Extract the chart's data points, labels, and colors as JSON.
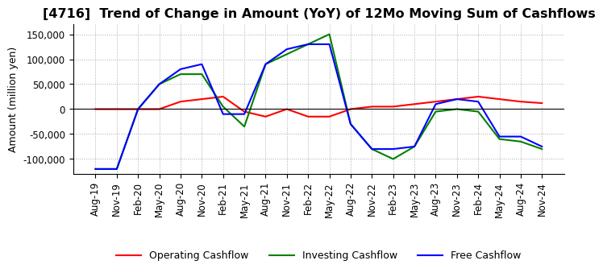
{
  "title": "[4716]  Trend of Change in Amount (YoY) of 12Mo Moving Sum of Cashflows",
  "ylabel": "Amount (million yen)",
  "ylim": [
    -130000,
    170000
  ],
  "yticks": [
    -100000,
    -50000,
    0,
    50000,
    100000,
    150000
  ],
  "background_color": "#ffffff",
  "grid_color": "#aaaaaa",
  "title_fontsize": 11.5,
  "label_fontsize": 9,
  "tick_fontsize": 8.5,
  "x_labels": [
    "Aug-19",
    "Nov-19",
    "Feb-20",
    "May-20",
    "Aug-20",
    "Nov-20",
    "Feb-21",
    "May-21",
    "Aug-21",
    "Nov-21",
    "Feb-22",
    "May-22",
    "Aug-22",
    "Nov-22",
    "Feb-23",
    "May-23",
    "Aug-23",
    "Nov-23",
    "Feb-24",
    "May-24",
    "Aug-24",
    "Nov-24"
  ],
  "operating": [
    0,
    0,
    0,
    0,
    15000,
    20000,
    25000,
    -5000,
    -15000,
    0,
    -15000,
    -15000,
    0,
    5000,
    5000,
    10000,
    15000,
    20000,
    25000,
    20000,
    15000,
    12000
  ],
  "investing": [
    -120000,
    -120000,
    0,
    50000,
    70000,
    70000,
    5000,
    -35000,
    90000,
    110000,
    130000,
    150000,
    -30000,
    -80000,
    -100000,
    -75000,
    -5000,
    0,
    -5000,
    -60000,
    -65000,
    -80000
  ],
  "free": [
    -120000,
    -120000,
    0,
    50000,
    80000,
    90000,
    -10000,
    -10000,
    90000,
    120000,
    130000,
    130000,
    -30000,
    -80000,
    -80000,
    -75000,
    10000,
    20000,
    15000,
    -55000,
    -55000,
    -75000
  ],
  "operating_color": "#ff0000",
  "investing_color": "#008000",
  "free_color": "#0000ff",
  "line_width": 1.5
}
